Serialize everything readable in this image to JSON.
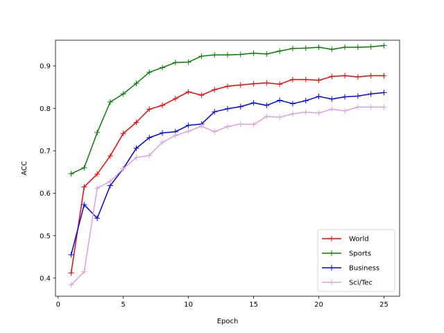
{
  "chart_data": {
    "type": "line",
    "title": "",
    "xlabel": "Epoch",
    "ylabel": "ACC",
    "xlim": [
      -0.2,
      26.2
    ],
    "ylim": [
      0.3573,
      0.9605
    ],
    "xticks": [
      0,
      5,
      10,
      15,
      20,
      25
    ],
    "yticks": [
      0.4,
      0.5,
      0.6,
      0.7,
      0.8,
      0.9
    ],
    "xtick_labels": [
      "0",
      "5",
      "10",
      "15",
      "20",
      "25"
    ],
    "ytick_labels": [
      "0.4",
      "0.5",
      "0.6",
      "0.7",
      "0.8",
      "0.9"
    ],
    "grid": false,
    "legend_position": "lower-right",
    "marker": "plus",
    "x": [
      1,
      2,
      3,
      4,
      5,
      6,
      7,
      8,
      9,
      10,
      11,
      12,
      13,
      14,
      15,
      16,
      17,
      18,
      19,
      20,
      21,
      22,
      23,
      24,
      25
    ],
    "series": [
      {
        "name": "World",
        "color": "#ff0000",
        "values": [
          0.412,
          0.615,
          0.645,
          0.688,
          0.741,
          0.767,
          0.798,
          0.807,
          0.823,
          0.839,
          0.831,
          0.844,
          0.852,
          0.855,
          0.858,
          0.86,
          0.857,
          0.868,
          0.868,
          0.866,
          0.875,
          0.877,
          0.874,
          0.877,
          0.877
        ]
      },
      {
        "name": "Sports",
        "color": "#008000",
        "values": [
          0.646,
          0.66,
          0.743,
          0.815,
          0.834,
          0.859,
          0.885,
          0.896,
          0.908,
          0.909,
          0.923,
          0.926,
          0.926,
          0.927,
          0.93,
          0.928,
          0.935,
          0.941,
          0.942,
          0.944,
          0.939,
          0.944,
          0.944,
          0.945,
          0.948
        ]
      },
      {
        "name": "Business",
        "color": "#0000ff",
        "values": [
          0.455,
          0.573,
          0.541,
          0.618,
          0.658,
          0.706,
          0.731,
          0.742,
          0.745,
          0.76,
          0.763,
          0.792,
          0.799,
          0.804,
          0.813,
          0.807,
          0.819,
          0.811,
          0.818,
          0.828,
          0.822,
          0.827,
          0.829,
          0.834,
          0.837
        ]
      },
      {
        "name": "Sci/Tec",
        "color": "#dda0dd",
        "values": [
          0.384,
          0.415,
          0.612,
          0.628,
          0.658,
          0.684,
          0.689,
          0.72,
          0.736,
          0.746,
          0.758,
          0.745,
          0.757,
          0.763,
          0.762,
          0.781,
          0.779,
          0.787,
          0.791,
          0.789,
          0.798,
          0.794,
          0.803,
          0.803,
          0.803
        ]
      }
    ]
  }
}
